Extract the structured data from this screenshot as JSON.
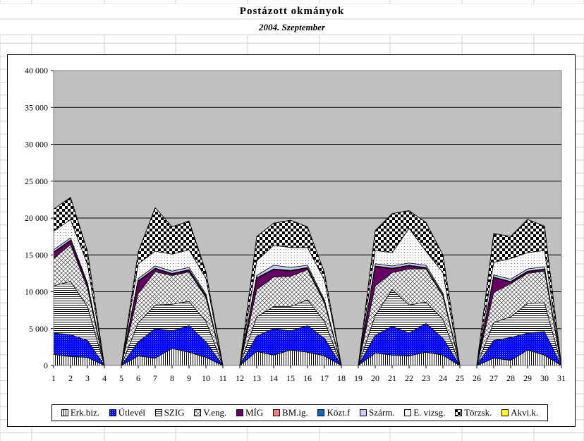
{
  "title": "Postázott okmányok",
  "subtitle": "2004. Szeptember",
  "chart_data": {
    "type": "area",
    "stacked": true,
    "x": [
      1,
      2,
      3,
      4,
      5,
      6,
      7,
      8,
      9,
      10,
      11,
      12,
      13,
      14,
      15,
      16,
      17,
      18,
      19,
      20,
      21,
      22,
      23,
      24,
      25,
      26,
      27,
      28,
      29,
      30,
      31
    ],
    "ylim": [
      0,
      40000
    ],
    "yticks": [
      "0",
      "5 000",
      "10 000",
      "15 000",
      "20 000",
      "25 000",
      "30 000",
      "35 000",
      "40 000"
    ],
    "grid": true,
    "legend_position": "bottom",
    "series": [
      {
        "name": "Erk.biz.",
        "color": "#ffffff",
        "pattern": "vlines",
        "values": [
          1500,
          1200,
          1100,
          0,
          0,
          1300,
          1000,
          2300,
          1800,
          1100,
          0,
          0,
          1900,
          1400,
          2100,
          1800,
          1300,
          0,
          0,
          1700,
          1400,
          1300,
          1800,
          1400,
          0,
          0,
          1000,
          700,
          2100,
          1400,
          0
        ]
      },
      {
        "name": "Útlevél",
        "color": "#0000ff",
        "pattern": "dots",
        "values": [
          2900,
          3000,
          2300,
          0,
          0,
          1900,
          4000,
          2400,
          3600,
          2100,
          0,
          0,
          2100,
          3600,
          2600,
          3600,
          2400,
          0,
          0,
          2400,
          3900,
          3100,
          3900,
          2300,
          0,
          0,
          2400,
          3100,
          2300,
          3200,
          0
        ]
      },
      {
        "name": "SZIG",
        "color": "#ffffff",
        "pattern": "hlines",
        "values": [
          6400,
          7200,
          4600,
          0,
          0,
          2600,
          3200,
          3600,
          3300,
          2800,
          0,
          0,
          2600,
          3000,
          3300,
          3500,
          2300,
          0,
          0,
          2700,
          5000,
          3800,
          2900,
          2600,
          0,
          0,
          2400,
          2800,
          4000,
          3900,
          0
        ]
      },
      {
        "name": "V.eng.",
        "color": "#ffffff",
        "pattern": "cross",
        "values": [
          3700,
          5000,
          2500,
          0,
          0,
          4000,
          4500,
          3900,
          4000,
          3200,
          0,
          0,
          3700,
          4000,
          4100,
          4100,
          2500,
          0,
          0,
          4000,
          2300,
          4900,
          4500,
          3100,
          0,
          0,
          4100,
          4500,
          4100,
          4300,
          0
        ]
      },
      {
        "name": "MÍG",
        "color": "#660066",
        "pattern": "solid",
        "values": [
          800,
          500,
          400,
          0,
          0,
          1600,
          400,
          200,
          200,
          200,
          0,
          0,
          1500,
          1000,
          700,
          200,
          100,
          0,
          0,
          2600,
          500,
          400,
          100,
          100,
          0,
          0,
          2000,
          200,
          200,
          200,
          0
        ]
      },
      {
        "name": "BM.ig.",
        "color": "#ff8080",
        "pattern": "solid",
        "values": [
          50,
          50,
          50,
          0,
          0,
          50,
          50,
          50,
          50,
          50,
          0,
          0,
          50,
          50,
          50,
          50,
          50,
          0,
          0,
          50,
          50,
          50,
          50,
          50,
          0,
          0,
          50,
          50,
          50,
          50,
          0
        ]
      },
      {
        "name": "Közt.f",
        "color": "#0066cc",
        "pattern": "solid",
        "values": [
          50,
          50,
          50,
          0,
          0,
          50,
          50,
          50,
          50,
          50,
          0,
          0,
          50,
          50,
          50,
          50,
          50,
          0,
          0,
          50,
          50,
          50,
          50,
          50,
          0,
          0,
          50,
          50,
          50,
          50,
          0
        ]
      },
      {
        "name": "Szárm.",
        "color": "#ccccff",
        "pattern": "solid",
        "values": [
          300,
          300,
          200,
          0,
          0,
          300,
          300,
          300,
          300,
          200,
          0,
          0,
          300,
          500,
          400,
          300,
          200,
          0,
          0,
          300,
          300,
          300,
          300,
          200,
          0,
          0,
          300,
          300,
          300,
          300,
          0
        ]
      },
      {
        "name": "E. vizsg.",
        "color": "#ffffff",
        "pattern": "sparse-dots",
        "values": [
          2500,
          2500,
          2500,
          0,
          0,
          2000,
          2000,
          2300,
          2400,
          2100,
          0,
          0,
          2000,
          2700,
          2700,
          2400,
          2700,
          0,
          0,
          1800,
          1800,
          4700,
          1900,
          2800,
          0,
          0,
          1700,
          2800,
          2200,
          2200,
          0
        ]
      },
      {
        "name": "Törzsk.",
        "color": "#000000",
        "pattern": "checker",
        "values": [
          3000,
          3000,
          1800,
          0,
          0,
          1600,
          5900,
          3700,
          3900,
          900,
          0,
          0,
          3300,
          3000,
          3700,
          2800,
          1000,
          0,
          0,
          2700,
          5300,
          2400,
          3900,
          2400,
          0,
          0,
          3900,
          3000,
          4500,
          3300,
          0
        ]
      },
      {
        "name": "Akvi.k.",
        "color": "#ffff00",
        "pattern": "solid",
        "values": [
          0,
          0,
          0,
          0,
          0,
          0,
          0,
          0,
          0,
          0,
          0,
          0,
          0,
          0,
          0,
          0,
          0,
          0,
          0,
          0,
          0,
          0,
          0,
          0,
          0,
          0,
          0,
          0,
          0,
          0,
          0
        ]
      }
    ]
  }
}
